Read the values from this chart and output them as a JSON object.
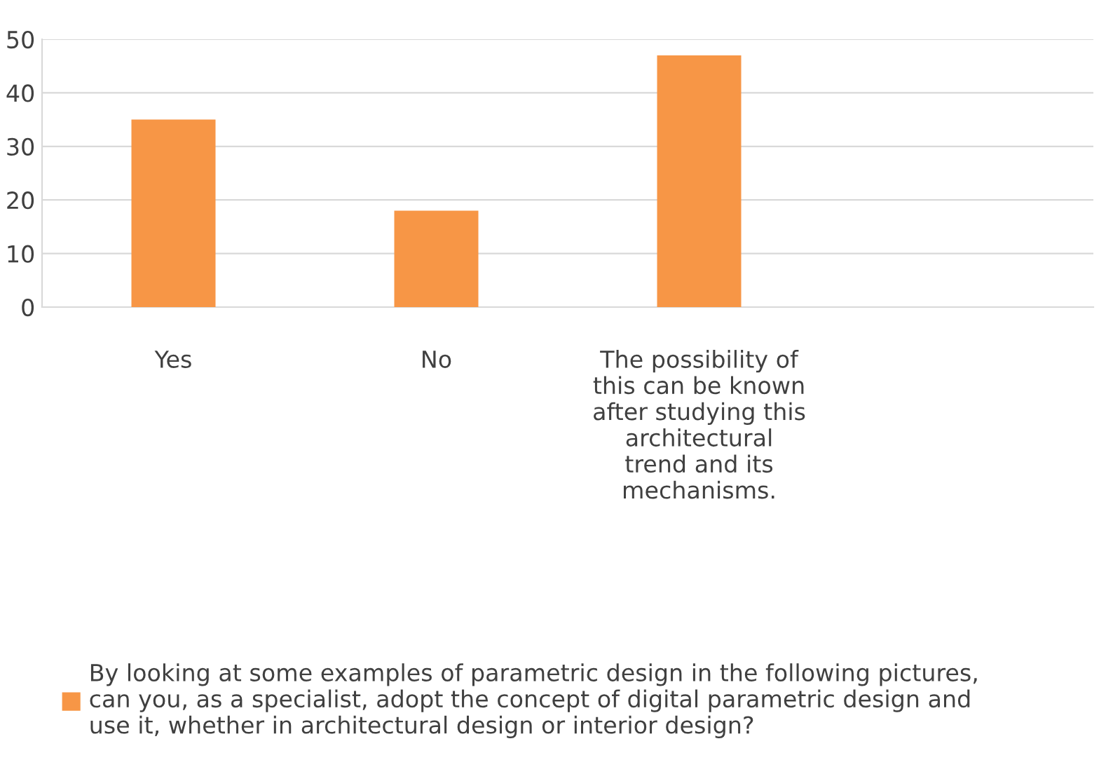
{
  "chart_data": {
    "type": "bar",
    "categories": [
      "Yes",
      "No",
      "The possibility of\nthis can be known\nafter studying this\narchitectural\ntrend and its\nmechanisms.",
      null
    ],
    "series": [
      {
        "name": "By looking at some examples of parametric design in the following pictures,\ncan you, as a specialist, adopt the concept of digital parametric design and\nuse it, whether in architectural design or interior design?",
        "color": "#f79646",
        "values": [
          35,
          18,
          47,
          null
        ]
      }
    ],
    "ylim": [
      0,
      50
    ],
    "yticks": [
      0,
      10,
      20,
      30,
      40,
      50
    ],
    "grid": "y",
    "legend": "bottom"
  }
}
